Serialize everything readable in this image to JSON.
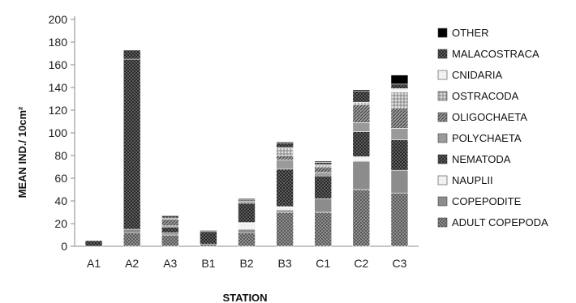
{
  "chart_data": {
    "type": "bar",
    "stacked": true,
    "title": "",
    "xlabel": "STATION",
    "ylabel": "MEAN IND./ 10cm²",
    "ylim": [
      0,
      200
    ],
    "yticks": [
      0,
      20,
      40,
      60,
      80,
      100,
      120,
      140,
      160,
      180,
      200
    ],
    "grid": false,
    "legend_position": "right",
    "categories": [
      "A1",
      "A2",
      "A3",
      "B1",
      "B2",
      "B3",
      "C1",
      "C2",
      "C3"
    ],
    "series": [
      {
        "name": "ADULT COPEPODA",
        "color": "#6a6a6a",
        "pattern": "dense-dots",
        "values": [
          0,
          12,
          10,
          2,
          12,
          30,
          30,
          50,
          47
        ]
      },
      {
        "name": "COPEPODITE",
        "color": "#8c8c8c",
        "pattern": "solid",
        "values": [
          0,
          3,
          2,
          0,
          3,
          2,
          12,
          25,
          20
        ]
      },
      {
        "name": "NAUPLII",
        "color": "#f2f2f2",
        "pattern": "light",
        "values": [
          0,
          0,
          0,
          0,
          6,
          3,
          0,
          4,
          0
        ]
      },
      {
        "name": "NEMATODA",
        "color": "#1a1a1a",
        "pattern": "crosshatch",
        "values": [
          5,
          150,
          5,
          11,
          17,
          33,
          20,
          22,
          27
        ]
      },
      {
        "name": "POLYCHAETA",
        "color": "#9a9a9a",
        "pattern": "solid",
        "values": [
          0,
          0,
          1,
          0,
          2,
          8,
          3,
          8,
          10
        ]
      },
      {
        "name": "OLIGOCHAETA",
        "color": "#7a7a7a",
        "pattern": "diagonal",
        "values": [
          0,
          0,
          6,
          0,
          0,
          4,
          5,
          16,
          18
        ]
      },
      {
        "name": "OSTRACODA",
        "color": "#cfcfcf",
        "pattern": "grid",
        "values": [
          0,
          0,
          1,
          0,
          0,
          7,
          2,
          2,
          14
        ]
      },
      {
        "name": "CNIDARIA",
        "color": "#f5f5f5",
        "pattern": "light",
        "values": [
          0,
          0,
          0,
          0,
          0,
          0,
          0,
          0,
          3
        ]
      },
      {
        "name": "MALACOSTRACA",
        "color": "#2a2a2a",
        "pattern": "crosshatch",
        "values": [
          0,
          8,
          2,
          1,
          1,
          4,
          2,
          10,
          4
        ]
      },
      {
        "name": "OTHER",
        "color": "#000000",
        "pattern": "solid",
        "values": [
          0,
          0,
          0,
          0,
          1,
          1,
          1,
          1,
          8
        ]
      }
    ]
  }
}
